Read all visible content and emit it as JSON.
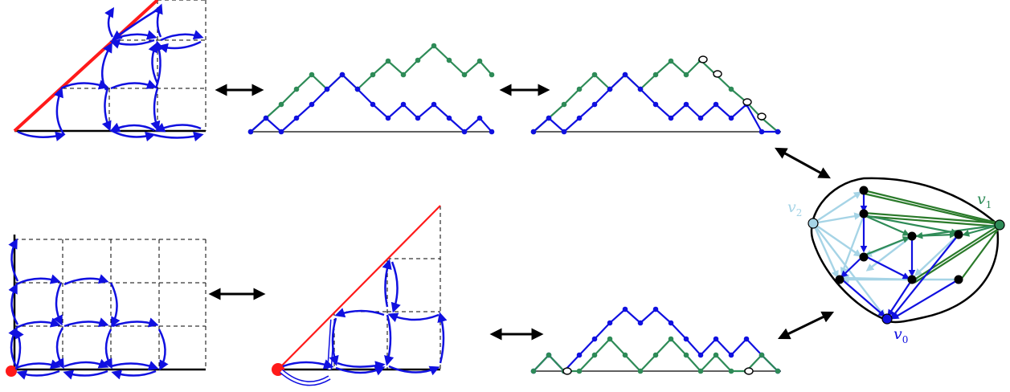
{
  "colors": {
    "blue": "#1010e0",
    "green": "#2e8b57",
    "red": "#ff1a1a",
    "light_blue": "#a6d4e6",
    "dark_green": "#2a7a2a",
    "black": "#000000"
  },
  "labels": {
    "v0": "v",
    "v0_sub": "0",
    "v1": "v",
    "v1_sub": "1",
    "v2": "v",
    "v2_sub": "2"
  },
  "icons": {
    "arrow": "double-headed-arrow",
    "vertex": "dot"
  }
}
